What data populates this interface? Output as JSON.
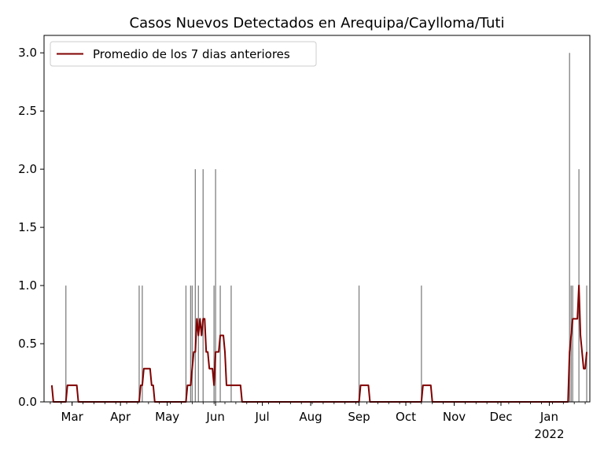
{
  "chart_data": {
    "type": "bar+line",
    "title": "Casos Nuevos Detectados en Arequipa/Caylloma/Tuti",
    "xlabel": "",
    "ylabel": "",
    "x_range": [
      "2021-02-11",
      "2022-01-27"
    ],
    "ylim": [
      0,
      3.15
    ],
    "yticks": [
      0.0,
      0.5,
      1.0,
      1.5,
      2.0,
      2.5,
      3.0
    ],
    "ytick_labels": [
      "0.0",
      "0.5",
      "1.0",
      "1.5",
      "2.0",
      "2.5",
      "3.0"
    ],
    "xticks": [
      {
        "date": "2021-03-01",
        "label": "Mar"
      },
      {
        "date": "2021-04-01",
        "label": "Apr"
      },
      {
        "date": "2021-05-01",
        "label": "May"
      },
      {
        "date": "2021-06-01",
        "label": "Jun"
      },
      {
        "date": "2021-07-01",
        "label": "Jul"
      },
      {
        "date": "2021-08-01",
        "label": "Aug"
      },
      {
        "date": "2021-09-01",
        "label": "Sep"
      },
      {
        "date": "2021-10-01",
        "label": "Oct"
      },
      {
        "date": "2021-11-01",
        "label": "Nov"
      },
      {
        "date": "2021-12-01",
        "label": "Dec"
      },
      {
        "date": "2022-01-01",
        "label": "Jan",
        "sublabel": "2022"
      }
    ],
    "grid": false,
    "legend_position": "upper-left",
    "bar_color": "#808080",
    "line_color": "#800000",
    "bars": [
      {
        "date": "2021-02-25",
        "value": 1
      },
      {
        "date": "2021-04-13",
        "value": 1
      },
      {
        "date": "2021-04-15",
        "value": 1
      },
      {
        "date": "2021-05-13",
        "value": 1
      },
      {
        "date": "2021-05-16",
        "value": 1
      },
      {
        "date": "2021-05-17",
        "value": 1
      },
      {
        "date": "2021-05-19",
        "value": 2
      },
      {
        "date": "2021-05-21",
        "value": 1
      },
      {
        "date": "2021-05-24",
        "value": 2
      },
      {
        "date": "2021-05-31",
        "value": 1
      },
      {
        "date": "2021-06-01",
        "value": 2
      },
      {
        "date": "2021-06-04",
        "value": 1
      },
      {
        "date": "2021-06-11",
        "value": 1
      },
      {
        "date": "2021-09-01",
        "value": 1
      },
      {
        "date": "2021-10-11",
        "value": 1
      },
      {
        "date": "2022-01-14",
        "value": 3
      },
      {
        "date": "2022-01-15",
        "value": 1
      },
      {
        "date": "2022-01-16",
        "value": 1
      },
      {
        "date": "2022-01-20",
        "value": 2
      },
      {
        "date": "2022-01-25",
        "value": 1
      }
    ],
    "series": [
      {
        "name": "Promedio de los 7 dias anteriores",
        "points": [
          [
            "2021-02-16",
            0.143
          ],
          [
            "2021-02-17",
            0.0
          ],
          [
            "2021-02-25",
            0.0
          ],
          [
            "2021-02-26",
            0.143
          ],
          [
            "2021-03-04",
            0.143
          ],
          [
            "2021-03-05",
            0.0
          ],
          [
            "2021-04-13",
            0.0
          ],
          [
            "2021-04-14",
            0.143
          ],
          [
            "2021-04-15",
            0.143
          ],
          [
            "2021-04-16",
            0.286
          ],
          [
            "2021-04-20",
            0.286
          ],
          [
            "2021-04-21",
            0.143
          ],
          [
            "2021-04-22",
            0.143
          ],
          [
            "2021-04-23",
            0.0
          ],
          [
            "2021-05-13",
            0.0
          ],
          [
            "2021-05-14",
            0.143
          ],
          [
            "2021-05-16",
            0.143
          ],
          [
            "2021-05-17",
            0.286
          ],
          [
            "2021-05-18",
            0.429
          ],
          [
            "2021-05-19",
            0.429
          ],
          [
            "2021-05-20",
            0.714
          ],
          [
            "2021-05-21",
            0.571
          ],
          [
            "2021-05-22",
            0.714
          ],
          [
            "2021-05-23",
            0.571
          ],
          [
            "2021-05-24",
            0.714
          ],
          [
            "2021-05-25",
            0.714
          ],
          [
            "2021-05-26",
            0.429
          ],
          [
            "2021-05-27",
            0.429
          ],
          [
            "2021-05-28",
            0.286
          ],
          [
            "2021-05-30",
            0.286
          ],
          [
            "2021-05-31",
            0.143
          ],
          [
            "2021-06-01",
            0.429
          ],
          [
            "2021-06-03",
            0.429
          ],
          [
            "2021-06-04",
            0.571
          ],
          [
            "2021-06-06",
            0.571
          ],
          [
            "2021-06-07",
            0.429
          ],
          [
            "2021-06-08",
            0.143
          ],
          [
            "2021-06-17",
            0.143
          ],
          [
            "2021-06-18",
            0.0
          ],
          [
            "2021-09-01",
            0.0
          ],
          [
            "2021-09-02",
            0.143
          ],
          [
            "2021-09-07",
            0.143
          ],
          [
            "2021-09-08",
            0.0
          ],
          [
            "2021-10-11",
            0.0
          ],
          [
            "2021-10-12",
            0.143
          ],
          [
            "2021-10-17",
            0.143
          ],
          [
            "2021-10-18",
            0.0
          ],
          [
            "2022-01-13",
            0.0
          ],
          [
            "2022-01-14",
            0.429
          ],
          [
            "2022-01-15",
            0.571
          ],
          [
            "2022-01-16",
            0.714
          ],
          [
            "2022-01-19",
            0.714
          ],
          [
            "2022-01-20",
            1.0
          ],
          [
            "2022-01-21",
            0.571
          ],
          [
            "2022-01-23",
            0.286
          ],
          [
            "2022-01-24",
            0.286
          ],
          [
            "2022-01-25",
            0.429
          ]
        ]
      }
    ]
  }
}
